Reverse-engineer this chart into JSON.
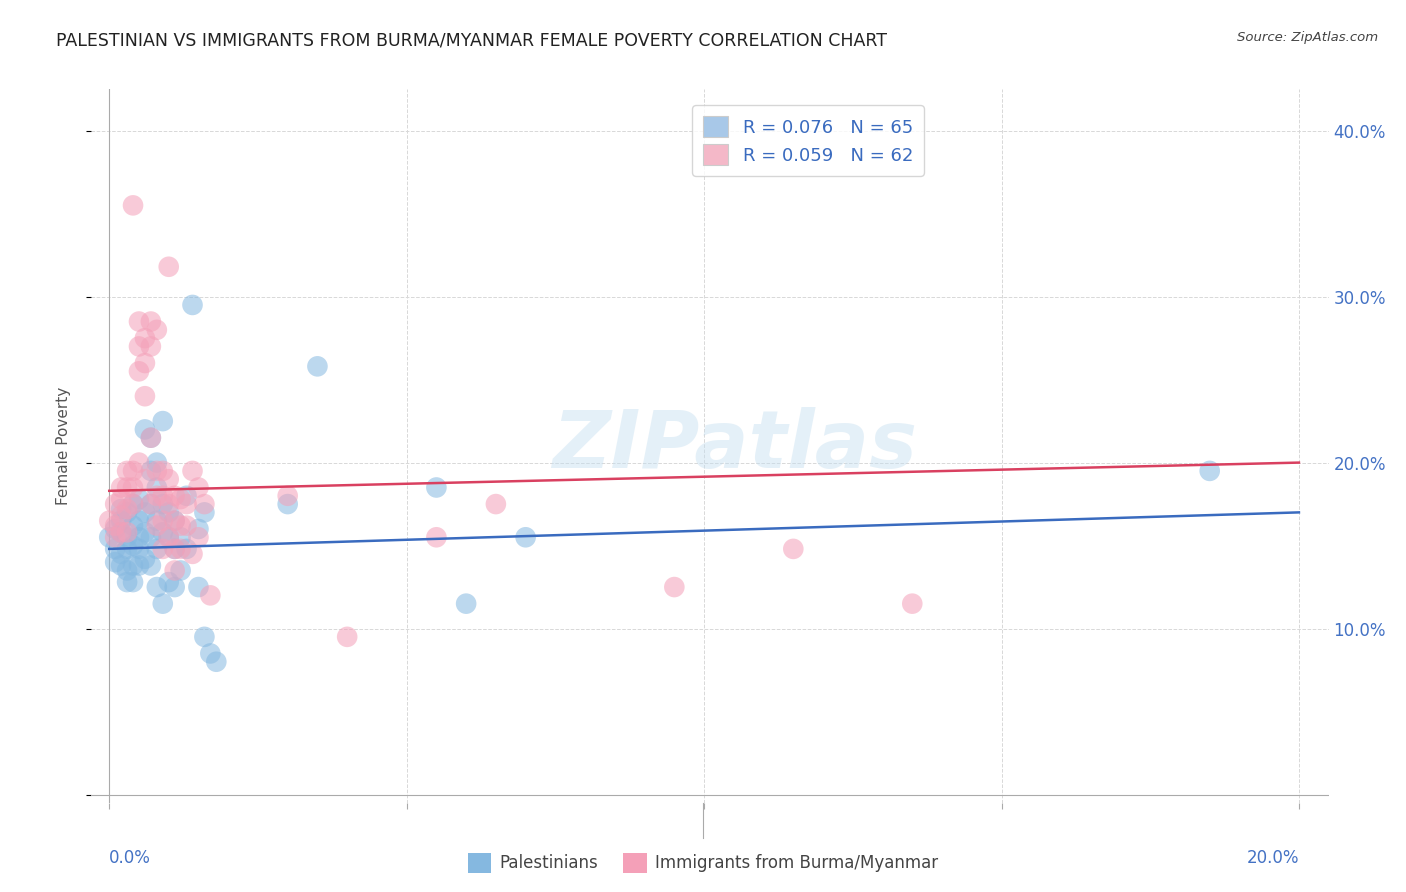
{
  "title": "PALESTINIAN VS IMMIGRANTS FROM BURMA/MYANMAR FEMALE POVERTY CORRELATION CHART",
  "source": "Source: ZipAtlas.com",
  "ylabel": "Female Poverty",
  "watermark": "ZIPatlas",
  "legend_entries": [
    {
      "label": "R = 0.076   N = 65",
      "color": "#a8c8e8"
    },
    {
      "label": "R = 0.059   N = 62",
      "color": "#f4b8c8"
    }
  ],
  "bottom_legend": [
    "Palestinians",
    "Immigrants from Burma/Myanmar"
  ],
  "blue_scatter": [
    [
      0.0,
      0.155
    ],
    [
      0.001,
      0.16
    ],
    [
      0.001,
      0.148
    ],
    [
      0.001,
      0.14
    ],
    [
      0.002,
      0.172
    ],
    [
      0.002,
      0.165
    ],
    [
      0.002,
      0.158
    ],
    [
      0.002,
      0.145
    ],
    [
      0.002,
      0.138
    ],
    [
      0.003,
      0.17
    ],
    [
      0.003,
      0.155
    ],
    [
      0.003,
      0.148
    ],
    [
      0.003,
      0.135
    ],
    [
      0.003,
      0.128
    ],
    [
      0.004,
      0.175
    ],
    [
      0.004,
      0.162
    ],
    [
      0.004,
      0.15
    ],
    [
      0.004,
      0.138
    ],
    [
      0.004,
      0.128
    ],
    [
      0.005,
      0.178
    ],
    [
      0.005,
      0.165
    ],
    [
      0.005,
      0.155
    ],
    [
      0.005,
      0.148
    ],
    [
      0.005,
      0.138
    ],
    [
      0.006,
      0.22
    ],
    [
      0.006,
      0.17
    ],
    [
      0.006,
      0.158
    ],
    [
      0.006,
      0.142
    ],
    [
      0.007,
      0.215
    ],
    [
      0.007,
      0.195
    ],
    [
      0.007,
      0.175
    ],
    [
      0.007,
      0.155
    ],
    [
      0.007,
      0.138
    ],
    [
      0.008,
      0.2
    ],
    [
      0.008,
      0.185
    ],
    [
      0.008,
      0.165
    ],
    [
      0.008,
      0.148
    ],
    [
      0.008,
      0.125
    ],
    [
      0.009,
      0.225
    ],
    [
      0.009,
      0.175
    ],
    [
      0.009,
      0.158
    ],
    [
      0.009,
      0.115
    ],
    [
      0.01,
      0.17
    ],
    [
      0.01,
      0.155
    ],
    [
      0.01,
      0.128
    ],
    [
      0.011,
      0.165
    ],
    [
      0.011,
      0.148
    ],
    [
      0.011,
      0.125
    ],
    [
      0.012,
      0.155
    ],
    [
      0.012,
      0.135
    ],
    [
      0.013,
      0.18
    ],
    [
      0.013,
      0.148
    ],
    [
      0.014,
      0.295
    ],
    [
      0.015,
      0.16
    ],
    [
      0.015,
      0.125
    ],
    [
      0.016,
      0.17
    ],
    [
      0.016,
      0.095
    ],
    [
      0.017,
      0.085
    ],
    [
      0.018,
      0.08
    ],
    [
      0.03,
      0.175
    ],
    [
      0.035,
      0.258
    ],
    [
      0.055,
      0.185
    ],
    [
      0.06,
      0.115
    ],
    [
      0.07,
      0.155
    ],
    [
      0.185,
      0.195
    ]
  ],
  "pink_scatter": [
    [
      0.0,
      0.165
    ],
    [
      0.001,
      0.175
    ],
    [
      0.001,
      0.162
    ],
    [
      0.001,
      0.155
    ],
    [
      0.002,
      0.185
    ],
    [
      0.002,
      0.178
    ],
    [
      0.002,
      0.168
    ],
    [
      0.002,
      0.158
    ],
    [
      0.003,
      0.195
    ],
    [
      0.003,
      0.185
    ],
    [
      0.003,
      0.172
    ],
    [
      0.003,
      0.158
    ],
    [
      0.004,
      0.355
    ],
    [
      0.004,
      0.195
    ],
    [
      0.004,
      0.185
    ],
    [
      0.004,
      0.175
    ],
    [
      0.005,
      0.285
    ],
    [
      0.005,
      0.27
    ],
    [
      0.005,
      0.255
    ],
    [
      0.005,
      0.2
    ],
    [
      0.006,
      0.275
    ],
    [
      0.006,
      0.26
    ],
    [
      0.006,
      0.24
    ],
    [
      0.006,
      0.19
    ],
    [
      0.007,
      0.285
    ],
    [
      0.007,
      0.27
    ],
    [
      0.007,
      0.215
    ],
    [
      0.007,
      0.175
    ],
    [
      0.008,
      0.28
    ],
    [
      0.008,
      0.195
    ],
    [
      0.008,
      0.18
    ],
    [
      0.008,
      0.162
    ],
    [
      0.009,
      0.195
    ],
    [
      0.009,
      0.18
    ],
    [
      0.009,
      0.165
    ],
    [
      0.009,
      0.148
    ],
    [
      0.01,
      0.19
    ],
    [
      0.01,
      0.175
    ],
    [
      0.01,
      0.155
    ],
    [
      0.01,
      0.318
    ],
    [
      0.011,
      0.18
    ],
    [
      0.011,
      0.165
    ],
    [
      0.011,
      0.148
    ],
    [
      0.011,
      0.135
    ],
    [
      0.012,
      0.178
    ],
    [
      0.012,
      0.162
    ],
    [
      0.012,
      0.148
    ],
    [
      0.013,
      0.175
    ],
    [
      0.013,
      0.162
    ],
    [
      0.014,
      0.195
    ],
    [
      0.014,
      0.145
    ],
    [
      0.015,
      0.185
    ],
    [
      0.015,
      0.155
    ],
    [
      0.016,
      0.175
    ],
    [
      0.017,
      0.12
    ],
    [
      0.03,
      0.18
    ],
    [
      0.04,
      0.095
    ],
    [
      0.055,
      0.155
    ],
    [
      0.065,
      0.175
    ],
    [
      0.095,
      0.125
    ],
    [
      0.115,
      0.148
    ],
    [
      0.135,
      0.115
    ]
  ],
  "blue_line": {
    "x": [
      0.0,
      0.2
    ],
    "y": [
      0.148,
      0.17
    ]
  },
  "pink_line": {
    "x": [
      0.0,
      0.2
    ],
    "y": [
      0.183,
      0.2
    ]
  },
  "xlim": [
    -0.003,
    0.205
  ],
  "ylim": [
    -0.005,
    0.425
  ],
  "yticks": [
    0.0,
    0.1,
    0.2,
    0.3,
    0.4
  ],
  "ytick_labels": [
    "",
    "10.0%",
    "20.0%",
    "30.0%",
    "40.0%"
  ],
  "xtick_positions": [
    0.0,
    0.05,
    0.1,
    0.15,
    0.2
  ],
  "blue_color": "#85b8e0",
  "pink_color": "#f4a0b8",
  "blue_line_color": "#3a6bbf",
  "pink_line_color": "#d94060",
  "bg_color": "#ffffff",
  "grid_color": "#d8d8d8",
  "title_color": "#222222",
  "source_color": "#444444",
  "axis_label_color": "#4472c4"
}
